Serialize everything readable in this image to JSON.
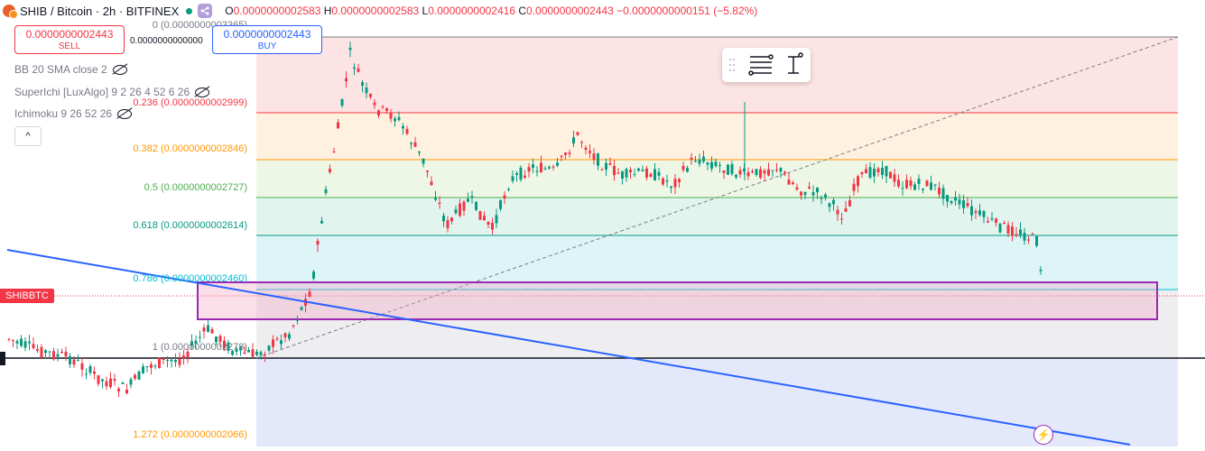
{
  "header": {
    "symbol": "SHIB / Bitcoin · 2h · BITFINEX",
    "o_label": "O",
    "o_value": "0.0000000002583",
    "h_label": "H",
    "h_value": "0.0000000002583",
    "l_label": "L",
    "l_value": "0.0000000002416",
    "c_label": "C",
    "c_value": "0.0000000002443",
    "change": "−0.0000000000151 (−5.82%)"
  },
  "trade": {
    "sell_price": "0.0000000002443",
    "sell_label": "SELL",
    "buy_price": "0.0000000002443",
    "buy_label": "BUY",
    "spread": "0.0000000000000"
  },
  "indicators": [
    {
      "label": "BB 20 SMA close 2"
    },
    {
      "label": "SuperIchi [LuxAlgo] 9 2 26 4 52 6 26"
    },
    {
      "label": "Ichimoku 9 26 52 26"
    }
  ],
  "collapse_label": "^",
  "fib": [
    {
      "label": "0 (0.0000000003365)",
      "color": "#787b86"
    },
    {
      "label": "0.236 (0.0000000002999)",
      "color": "#f23645"
    },
    {
      "label": "0.382 (0.0000000002846)",
      "color": "#ff9800"
    },
    {
      "label": "0.5 (0.0000000002727)",
      "color": "#4caf50"
    },
    {
      "label": "0.618 (0.0000000002614)",
      "color": "#089981"
    },
    {
      "label": "0.786 (0.0000000002460)",
      "color": "#00bcd4"
    },
    {
      "label": "1 (0.0000000002278)",
      "color": "#787b86"
    },
    {
      "label": "1.272 (0.0000000002066)",
      "color": "#ff9800"
    }
  ],
  "symbol_tag": "SHIBBTC",
  "toolbar": {
    "icons": [
      "drag-handle-icon",
      "fib-levels-icon",
      "text-cursor-icon"
    ]
  },
  "bolt_icon": "lightning-icon",
  "colors": {
    "up": "#089981",
    "down": "#f23645",
    "trendline": "#2962ff",
    "rectangle": "#9c27b0"
  }
}
